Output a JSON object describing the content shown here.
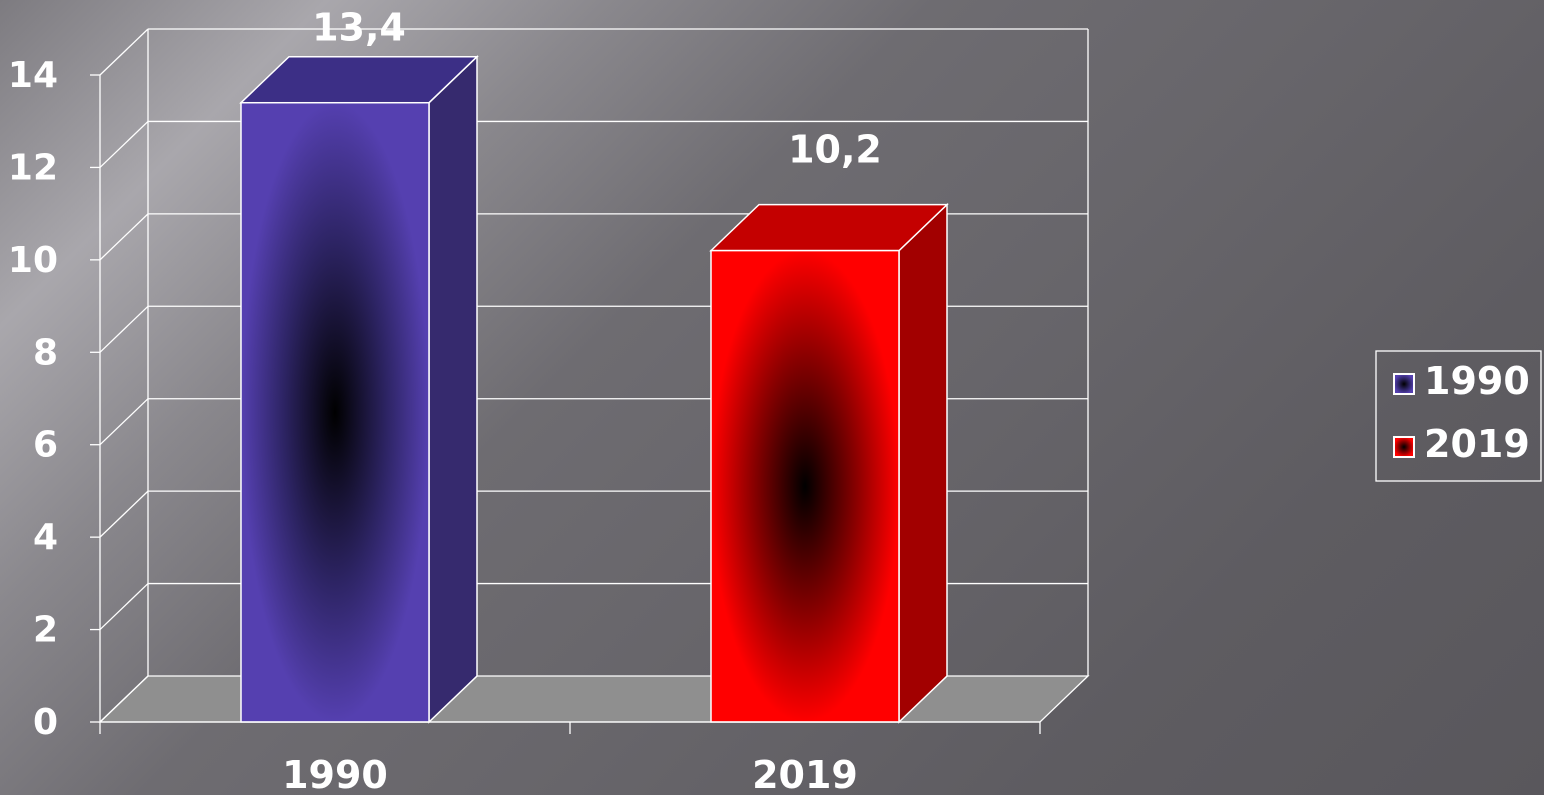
{
  "chart_data": {
    "type": "bar",
    "categories": [
      "1990",
      "2019"
    ],
    "series": [
      {
        "name": "1990",
        "values": [
          13.4,
          null
        ],
        "color": "#5540b0",
        "top_color": "#3c2f86",
        "side_color": "#362a6e"
      },
      {
        "name": "2019",
        "values": [
          null,
          10.2
        ],
        "color": "#ff0000",
        "top_color": "#c40000",
        "side_color": "#a20000"
      }
    ],
    "value_labels": [
      "13,4",
      "10,2"
    ],
    "ylim": [
      0,
      14
    ],
    "y_ticks": [
      0,
      2,
      4,
      6,
      8,
      10,
      12,
      14
    ],
    "y_tick_labels": [
      "0",
      "2",
      "4",
      "6",
      "8",
      "10",
      "12",
      "14"
    ],
    "grid": true,
    "legend": {
      "position": "right",
      "entries": [
        "1990",
        "2019"
      ]
    },
    "style": "3d-bar",
    "title": "",
    "xlabel": "",
    "ylabel": ""
  }
}
